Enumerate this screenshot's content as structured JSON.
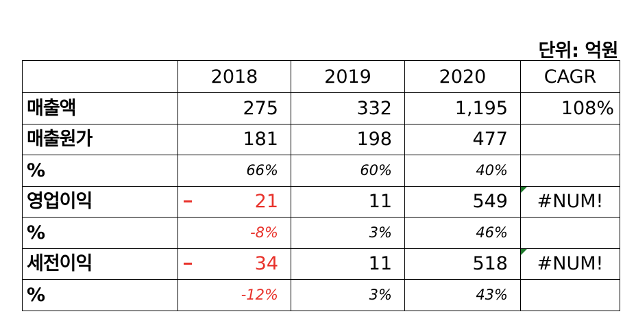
{
  "unit_label": "단위: 억원",
  "colors": {
    "negative": "#e8312a",
    "comment_marker": "#1f7a2c"
  },
  "table": {
    "headers": [
      "",
      "2018",
      "2019",
      "2020",
      "CAGR"
    ],
    "rows": [
      {
        "label": "매출액",
        "v2018": "275",
        "v2019": "332",
        "v2020": "1,195",
        "cagr": "108%"
      },
      {
        "label": "매출원가",
        "v2018": "181",
        "v2019": "198",
        "v2020": "477",
        "cagr": ""
      },
      {
        "label": "%",
        "v2018": "66%",
        "v2019": "60%",
        "v2020": "40%",
        "cagr": ""
      },
      {
        "label": "영업이익",
        "v2018_sign": "-",
        "v2018": "21",
        "v2019": "11",
        "v2020": "549",
        "cagr": "#NUM!"
      },
      {
        "label": "%",
        "v2018": "-8%",
        "v2019": "3%",
        "v2020": "46%",
        "cagr": ""
      },
      {
        "label": "세전이익",
        "v2018_sign": "-",
        "v2018": "34",
        "v2019": "11",
        "v2020": "518",
        "cagr": "#NUM!"
      },
      {
        "label": "%",
        "v2018": "-12%",
        "v2019": "3%",
        "v2020": "43%",
        "cagr": ""
      }
    ]
  }
}
